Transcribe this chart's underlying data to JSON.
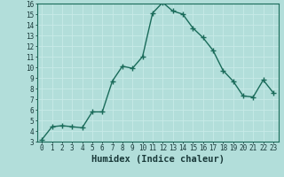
{
  "x": [
    0,
    1,
    2,
    3,
    4,
    5,
    6,
    7,
    8,
    9,
    10,
    11,
    12,
    13,
    14,
    15,
    16,
    17,
    18,
    19,
    20,
    21,
    22,
    23
  ],
  "y": [
    3.2,
    4.4,
    4.5,
    4.4,
    4.3,
    5.8,
    5.8,
    8.7,
    10.1,
    9.9,
    11.0,
    15.1,
    16.1,
    15.3,
    15.0,
    13.7,
    12.8,
    11.6,
    9.7,
    8.7,
    7.3,
    7.2,
    8.8,
    7.6
  ],
  "xlabel": "Humidex (Indice chaleur)",
  "xlim": [
    -0.5,
    23.5
  ],
  "ylim": [
    3,
    16
  ],
  "yticks": [
    3,
    4,
    5,
    6,
    7,
    8,
    9,
    10,
    11,
    12,
    13,
    14,
    15,
    16
  ],
  "xticks": [
    0,
    1,
    2,
    3,
    4,
    5,
    6,
    7,
    8,
    9,
    10,
    11,
    12,
    13,
    14,
    15,
    16,
    17,
    18,
    19,
    20,
    21,
    22,
    23
  ],
  "line_color": "#1a6b5a",
  "marker": "+",
  "marker_size": 4,
  "bg_color": "#b2deda",
  "grid_color": "#c8eae8",
  "tick_label_color": "#1a3a3a",
  "xlabel_color": "#1a3a3a",
  "xlabel_fontsize": 7.5,
  "tick_fontsize": 5.5,
  "line_width": 1.0
}
